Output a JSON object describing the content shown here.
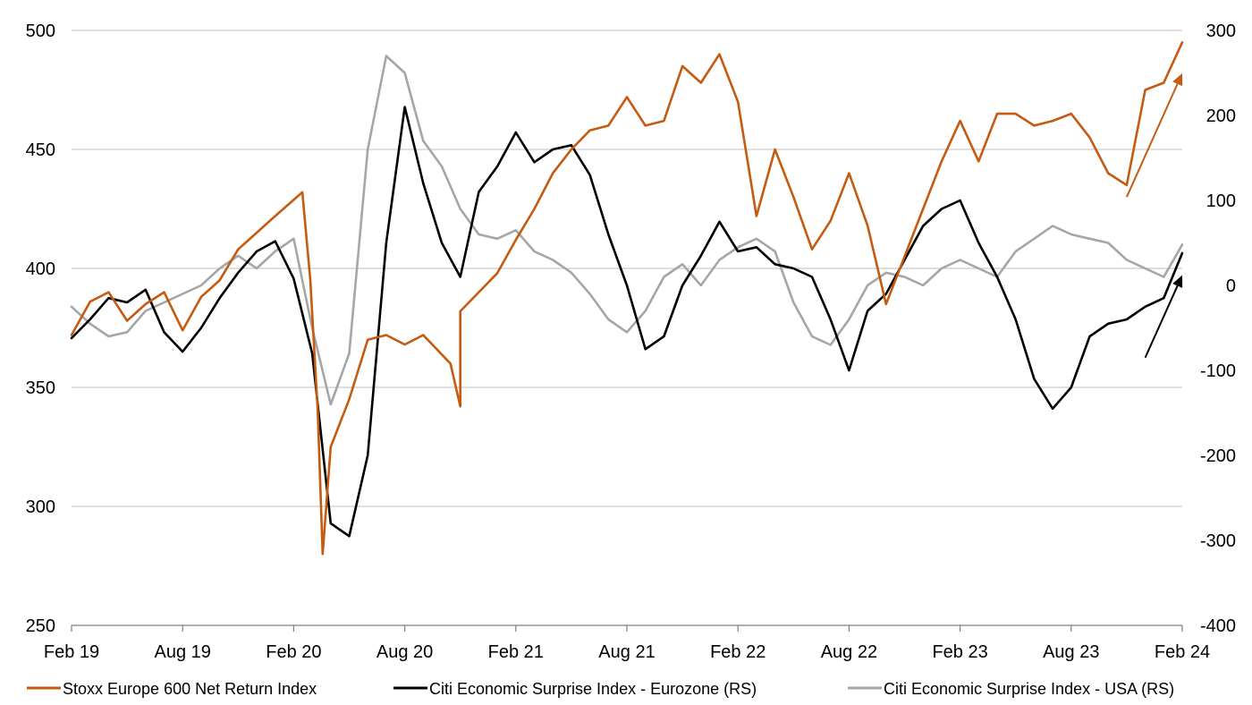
{
  "chart_data": {
    "type": "line",
    "title": "",
    "x_ticks": [
      "Feb 19",
      "Aug 19",
      "Feb 20",
      "Aug 20",
      "Feb 21",
      "Aug 21",
      "Feb 22",
      "Aug 22",
      "Feb 23",
      "Aug 23",
      "Feb 24"
    ],
    "x_range": [
      "Feb 19",
      "Feb 24"
    ],
    "y_left": {
      "ticks": [
        500,
        450,
        400,
        350,
        300,
        250
      ],
      "range": [
        250,
        500
      ]
    },
    "y_right": {
      "ticks": [
        300,
        200,
        100,
        0,
        -100,
        -200,
        -300,
        -400
      ],
      "range": [
        -400,
        300
      ]
    },
    "grid": "horizontal",
    "legend_position": "bottom",
    "colors": {
      "stoxx": "#c55a11",
      "eurozone": "#000000",
      "usa": "#a6a6a6"
    },
    "series": [
      {
        "name": "Stoxx Europe 600 Net Return Index",
        "axis": "left",
        "color": "#c55a11",
        "points": [
          [
            "2019-02",
            372
          ],
          [
            "2019-03",
            386
          ],
          [
            "2019-04",
            390
          ],
          [
            "2019-05",
            378
          ],
          [
            "2019-06",
            385
          ],
          [
            "2019-07",
            390
          ],
          [
            "2019-08",
            374
          ],
          [
            "2019-09",
            388
          ],
          [
            "2019-10",
            395
          ],
          [
            "2019-11",
            408
          ],
          [
            "2019-12",
            415
          ],
          [
            "2020-01",
            422
          ],
          [
            "2020-02-15",
            432
          ],
          [
            "2020-02-28",
            395
          ],
          [
            "2020-03-10",
            340
          ],
          [
            "2020-03-18",
            280
          ],
          [
            "2020-04",
            325
          ],
          [
            "2020-05",
            345
          ],
          [
            "2020-06",
            370
          ],
          [
            "2020-07",
            372
          ],
          [
            "2020-08",
            368
          ],
          [
            "2020-09",
            372
          ],
          [
            "2020-10-15",
            360
          ],
          [
            "2020-10-31",
            342
          ],
          [
            "2020-11",
            382
          ],
          [
            "2020-12",
            390
          ],
          [
            "2021-01",
            398
          ],
          [
            "2021-02",
            412
          ],
          [
            "2021-03",
            425
          ],
          [
            "2021-04",
            440
          ],
          [
            "2021-05",
            450
          ],
          [
            "2021-06",
            458
          ],
          [
            "2021-07",
            460
          ],
          [
            "2021-08",
            472
          ],
          [
            "2021-09",
            460
          ],
          [
            "2021-10",
            462
          ],
          [
            "2021-11",
            485
          ],
          [
            "2021-12",
            478
          ],
          [
            "2022-01",
            490
          ],
          [
            "2022-02",
            470
          ],
          [
            "2022-03",
            422
          ],
          [
            "2022-04",
            450
          ],
          [
            "2022-05",
            430
          ],
          [
            "2022-06",
            408
          ],
          [
            "2022-07",
            420
          ],
          [
            "2022-08",
            440
          ],
          [
            "2022-09",
            418
          ],
          [
            "2022-10",
            385
          ],
          [
            "2022-11",
            405
          ],
          [
            "2022-12",
            425
          ],
          [
            "2023-01",
            445
          ],
          [
            "2023-02",
            462
          ],
          [
            "2023-03",
            445
          ],
          [
            "2023-04",
            465
          ],
          [
            "2023-05",
            465
          ],
          [
            "2023-06",
            460
          ],
          [
            "2023-07",
            462
          ],
          [
            "2023-08",
            465
          ],
          [
            "2023-09",
            455
          ],
          [
            "2023-10",
            440
          ],
          [
            "2023-11",
            435
          ],
          [
            "2023-12",
            475
          ],
          [
            "2024-01",
            478
          ],
          [
            "2024-02",
            495
          ]
        ]
      },
      {
        "name": "Citi Economic Surprise Index - Eurozone (RS)",
        "axis": "right",
        "color": "#000000",
        "points": [
          [
            "2019-02",
            -62
          ],
          [
            "2019-03",
            -40
          ],
          [
            "2019-04",
            -15
          ],
          [
            "2019-05",
            -20
          ],
          [
            "2019-06",
            -5
          ],
          [
            "2019-07",
            -55
          ],
          [
            "2019-08",
            -78
          ],
          [
            "2019-09",
            -50
          ],
          [
            "2019-10",
            -15
          ],
          [
            "2019-11",
            15
          ],
          [
            "2019-12",
            40
          ],
          [
            "2020-01",
            52
          ],
          [
            "2020-02",
            8
          ],
          [
            "2020-03",
            -80
          ],
          [
            "2020-04",
            -280
          ],
          [
            "2020-05",
            -295
          ],
          [
            "2020-06",
            -200
          ],
          [
            "2020-07",
            50
          ],
          [
            "2020-08",
            210
          ],
          [
            "2020-09",
            120
          ],
          [
            "2020-10",
            50
          ],
          [
            "2020-11",
            10
          ],
          [
            "2020-12",
            110
          ],
          [
            "2021-01",
            140
          ],
          [
            "2021-02",
            180
          ],
          [
            "2021-03",
            145
          ],
          [
            "2021-04",
            160
          ],
          [
            "2021-05",
            165
          ],
          [
            "2021-06",
            130
          ],
          [
            "2021-07",
            60
          ],
          [
            "2021-08",
            0
          ],
          [
            "2021-09",
            -75
          ],
          [
            "2021-10",
            -60
          ],
          [
            "2021-11",
            0
          ],
          [
            "2021-12",
            35
          ],
          [
            "2022-01",
            75
          ],
          [
            "2022-02",
            40
          ],
          [
            "2022-03",
            45
          ],
          [
            "2022-04",
            25
          ],
          [
            "2022-05",
            20
          ],
          [
            "2022-06",
            10
          ],
          [
            "2022-07",
            -40
          ],
          [
            "2022-08",
            -100
          ],
          [
            "2022-09",
            -30
          ],
          [
            "2022-10",
            -10
          ],
          [
            "2022-11",
            30
          ],
          [
            "2022-12",
            70
          ],
          [
            "2023-01",
            90
          ],
          [
            "2023-02",
            100
          ],
          [
            "2023-03",
            50
          ],
          [
            "2023-04",
            10
          ],
          [
            "2023-05",
            -40
          ],
          [
            "2023-06",
            -110
          ],
          [
            "2023-07",
            -145
          ],
          [
            "2023-08",
            -120
          ],
          [
            "2023-09",
            -60
          ],
          [
            "2023-10",
            -45
          ],
          [
            "2023-11",
            -40
          ],
          [
            "2023-12",
            -25
          ],
          [
            "2024-01",
            -15
          ],
          [
            "2024-02",
            38
          ]
        ]
      },
      {
        "name": "Citi Economic Surprise Index - USA (RS)",
        "axis": "right",
        "color": "#a6a6a6",
        "points": [
          [
            "2019-02",
            -25
          ],
          [
            "2019-03",
            -45
          ],
          [
            "2019-04",
            -60
          ],
          [
            "2019-05",
            -55
          ],
          [
            "2019-06",
            -30
          ],
          [
            "2019-07",
            -20
          ],
          [
            "2019-08",
            -10
          ],
          [
            "2019-09",
            0
          ],
          [
            "2019-10",
            20
          ],
          [
            "2019-11",
            35
          ],
          [
            "2019-12",
            20
          ],
          [
            "2020-01",
            40
          ],
          [
            "2020-02",
            55
          ],
          [
            "2020-03",
            -50
          ],
          [
            "2020-04",
            -140
          ],
          [
            "2020-05",
            -80
          ],
          [
            "2020-06",
            160
          ],
          [
            "2020-07",
            270
          ],
          [
            "2020-08",
            250
          ],
          [
            "2020-09",
            170
          ],
          [
            "2020-10",
            140
          ],
          [
            "2020-11",
            90
          ],
          [
            "2020-12",
            60
          ],
          [
            "2021-01",
            55
          ],
          [
            "2021-02",
            65
          ],
          [
            "2021-03",
            40
          ],
          [
            "2021-04",
            30
          ],
          [
            "2021-05",
            15
          ],
          [
            "2021-06",
            -10
          ],
          [
            "2021-07",
            -40
          ],
          [
            "2021-08",
            -55
          ],
          [
            "2021-09",
            -30
          ],
          [
            "2021-10",
            10
          ],
          [
            "2021-11",
            25
          ],
          [
            "2021-12",
            0
          ],
          [
            "2022-01",
            30
          ],
          [
            "2022-02",
            45
          ],
          [
            "2022-03",
            55
          ],
          [
            "2022-04",
            40
          ],
          [
            "2022-05",
            -20
          ],
          [
            "2022-06",
            -60
          ],
          [
            "2022-07",
            -70
          ],
          [
            "2022-08",
            -40
          ],
          [
            "2022-09",
            0
          ],
          [
            "2022-10",
            15
          ],
          [
            "2022-11",
            10
          ],
          [
            "2022-12",
            0
          ],
          [
            "2023-01",
            20
          ],
          [
            "2023-02",
            30
          ],
          [
            "2023-03",
            20
          ],
          [
            "2023-04",
            10
          ],
          [
            "2023-05",
            40
          ],
          [
            "2023-06",
            55
          ],
          [
            "2023-07",
            70
          ],
          [
            "2023-08",
            60
          ],
          [
            "2023-09",
            55
          ],
          [
            "2023-10",
            50
          ],
          [
            "2023-11",
            30
          ],
          [
            "2023-12",
            20
          ],
          [
            "2024-01",
            10
          ],
          [
            "2024-02",
            48
          ]
        ]
      }
    ],
    "annotations": [
      {
        "type": "arrow",
        "color": "#c55a11",
        "from": [
          "2023-11",
          430
        ],
        "to": [
          "2024-02",
          482
        ],
        "axis": "left"
      },
      {
        "type": "arrow",
        "color": "#000000",
        "from": [
          "2023-12",
          -85
        ],
        "to": [
          "2024-02",
          12
        ],
        "axis": "right"
      }
    ]
  }
}
